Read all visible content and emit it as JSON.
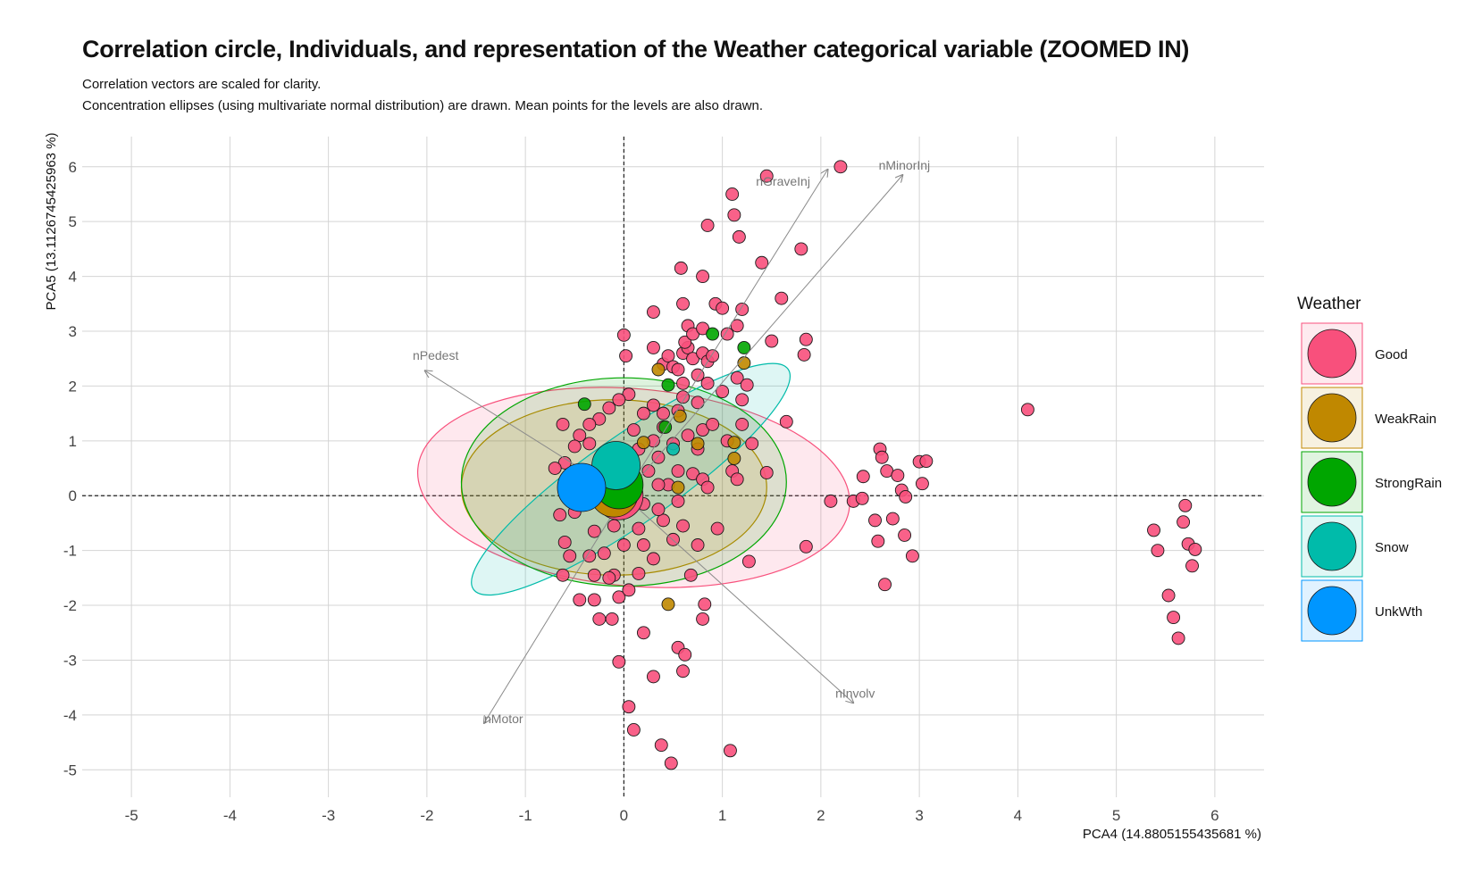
{
  "chart_data": {
    "type": "scatter",
    "title": "Correlation circle, Individuals, and representation of the Weather categorical variable (ZOOMED IN)",
    "subtitle_lines": [
      "Correlation vectors are scaled for clarity.",
      "Concentration ellipses (using multivariate normal distribution) are drawn. Mean points for the levels are also drawn."
    ],
    "xlabel": "PCA4 (14.8805155435681 %)",
    "ylabel": "PCA5 (13.1126745425963 %)",
    "xlim": [
      -5.5,
      6.5
    ],
    "ylim": [
      -5.5,
      6.55
    ],
    "xticks": [
      -5,
      -4,
      -3,
      -2,
      -1,
      0,
      1,
      2,
      3,
      4,
      5,
      6
    ],
    "yticks": [
      -5,
      -4,
      -3,
      -2,
      -1,
      0,
      1,
      2,
      3,
      4,
      5,
      6
    ],
    "grid": true,
    "reference_lines": {
      "x": 0,
      "y": 0,
      "style": "dashed"
    },
    "legend": {
      "title": "Weather",
      "position": "right",
      "items": [
        {
          "label": "Good",
          "color": "#F8507C"
        },
        {
          "label": "WeakRain",
          "color": "#C08800"
        },
        {
          "label": "StrongRain",
          "color": "#00A600"
        },
        {
          "label": "Snow",
          "color": "#00BBAA"
        },
        {
          "label": "UnkWth",
          "color": "#0096FF"
        }
      ]
    },
    "vectors": [
      {
        "label": "nGraveInj",
        "x": 2.07,
        "y": 5.95
      },
      {
        "label": "nMinorInj",
        "x": 2.83,
        "y": 5.85
      },
      {
        "label": "nPedest",
        "x": -2.02,
        "y": 2.28
      },
      {
        "label": "nInvolv",
        "x": 2.33,
        "y": -3.78
      },
      {
        "label": "nMotor",
        "x": -1.42,
        "y": -4.15
      }
    ],
    "ellipses": [
      {
        "level": "Good",
        "cx": 0.1,
        "cy": 0.15,
        "rx": 2.2,
        "ry": 1.8,
        "angle": -5
      },
      {
        "level": "WeakRain",
        "cx": -0.1,
        "cy": 0.15,
        "rx": 1.55,
        "ry": 1.6,
        "angle": 0
      },
      {
        "level": "StrongRain",
        "cx": 0.0,
        "cy": 0.25,
        "rx": 1.65,
        "ry": 1.9,
        "angle": 0
      },
      {
        "level": "Snow",
        "cx": 0.07,
        "cy": 0.3,
        "rx": 1.95,
        "ry": 0.8,
        "angle": 35
      }
    ],
    "means": [
      {
        "level": "Good",
        "x": -0.05,
        "y": 0.0
      },
      {
        "level": "WeakRain",
        "x": -0.1,
        "y": 0.05
      },
      {
        "level": "StrongRain",
        "x": -0.05,
        "y": 0.2
      },
      {
        "level": "Snow",
        "x": -0.08,
        "y": 0.55
      },
      {
        "level": "UnkWth",
        "x": -0.43,
        "y": 0.15
      }
    ],
    "points": [
      {
        "level": "Good",
        "xy": [
          [
            0.0,
            2.93
          ],
          [
            0.02,
            2.55
          ],
          [
            0.3,
            2.7
          ],
          [
            0.3,
            3.35
          ],
          [
            0.4,
            2.4
          ],
          [
            0.45,
            2.55
          ],
          [
            0.5,
            2.35
          ],
          [
            0.55,
            2.3
          ],
          [
            0.6,
            2.6
          ],
          [
            0.6,
            2.05
          ],
          [
            0.65,
            2.7
          ],
          [
            0.7,
            2.5
          ],
          [
            0.75,
            2.2
          ],
          [
            0.8,
            2.6
          ],
          [
            0.6,
            3.5
          ],
          [
            0.62,
            2.8
          ],
          [
            0.65,
            3.1
          ],
          [
            0.7,
            2.95
          ],
          [
            0.8,
            3.05
          ],
          [
            0.85,
            2.45
          ],
          [
            0.9,
            2.55
          ],
          [
            0.93,
            3.5
          ],
          [
            1.0,
            3.42
          ],
          [
            1.05,
            2.95
          ],
          [
            1.15,
            3.1
          ],
          [
            1.2,
            3.4
          ],
          [
            0.85,
            4.93
          ],
          [
            1.1,
            5.5
          ],
          [
            1.12,
            5.12
          ],
          [
            1.17,
            4.72
          ],
          [
            1.45,
            5.83
          ],
          [
            2.2,
            6.0
          ],
          [
            1.8,
            4.5
          ],
          [
            1.4,
            4.25
          ],
          [
            0.8,
            4.0
          ],
          [
            0.58,
            4.15
          ],
          [
            1.6,
            3.6
          ],
          [
            1.85,
            2.85
          ],
          [
            1.5,
            2.82
          ],
          [
            1.83,
            2.57
          ],
          [
            1.15,
            2.15
          ],
          [
            1.25,
            2.02
          ],
          [
            1.2,
            1.75
          ],
          [
            1.65,
            1.35
          ],
          [
            1.0,
            1.9
          ],
          [
            0.85,
            2.05
          ],
          [
            0.75,
            1.7
          ],
          [
            0.6,
            1.8
          ],
          [
            0.55,
            1.55
          ],
          [
            0.4,
            1.5
          ],
          [
            0.3,
            1.65
          ],
          [
            0.2,
            1.5
          ],
          [
            0.1,
            1.2
          ],
          [
            0.05,
            1.85
          ],
          [
            -0.05,
            1.75
          ],
          [
            -0.15,
            1.6
          ],
          [
            -0.25,
            1.4
          ],
          [
            -0.35,
            1.3
          ],
          [
            -0.45,
            1.1
          ],
          [
            -0.5,
            0.9
          ],
          [
            -0.6,
            0.6
          ],
          [
            -0.7,
            0.5
          ],
          [
            -0.62,
            1.3
          ],
          [
            -0.35,
            0.95
          ],
          [
            -0.2,
            0.65
          ],
          [
            -0.3,
            0.4
          ],
          [
            -0.4,
            -0.1
          ],
          [
            -0.5,
            -0.3
          ],
          [
            -0.3,
            -0.65
          ],
          [
            -0.1,
            -0.55
          ],
          [
            0.0,
            -0.9
          ],
          [
            0.2,
            -0.9
          ],
          [
            0.3,
            -1.15
          ],
          [
            0.15,
            -1.42
          ],
          [
            -0.1,
            -1.45
          ],
          [
            -0.3,
            -1.45
          ],
          [
            -0.35,
            -1.1
          ],
          [
            -0.05,
            -1.85
          ],
          [
            -0.25,
            -2.25
          ],
          [
            -0.12,
            -2.25
          ],
          [
            0.05,
            -1.72
          ],
          [
            0.2,
            -2.5
          ],
          [
            0.3,
            -3.3
          ],
          [
            0.55,
            -2.77
          ],
          [
            0.62,
            -2.9
          ],
          [
            0.6,
            -3.2
          ],
          [
            0.8,
            -2.25
          ],
          [
            0.82,
            -1.98
          ],
          [
            -0.05,
            -3.03
          ],
          [
            0.05,
            -3.85
          ],
          [
            0.1,
            -4.27
          ],
          [
            0.38,
            -4.55
          ],
          [
            0.48,
            -4.88
          ],
          [
            1.08,
            -4.65
          ],
          [
            0.68,
            -1.45
          ],
          [
            1.27,
            -1.2
          ],
          [
            0.5,
            -0.8
          ],
          [
            0.75,
            -0.9
          ],
          [
            0.95,
            -0.6
          ],
          [
            0.6,
            -0.55
          ],
          [
            0.4,
            -0.45
          ],
          [
            0.35,
            -0.25
          ],
          [
            0.55,
            -0.1
          ],
          [
            0.45,
            0.2
          ],
          [
            0.7,
            0.4
          ],
          [
            0.8,
            0.3
          ],
          [
            0.85,
            0.15
          ],
          [
            1.1,
            0.45
          ],
          [
            1.15,
            0.3
          ],
          [
            1.45,
            0.42
          ],
          [
            1.3,
            0.95
          ],
          [
            1.05,
            1.0
          ],
          [
            0.5,
            0.95
          ],
          [
            0.35,
            0.7
          ],
          [
            0.25,
            0.45
          ],
          [
            0.1,
            0.3
          ],
          [
            0.15,
            0.85
          ],
          [
            0.3,
            1.0
          ],
          [
            0.4,
            1.25
          ],
          [
            0.65,
            1.1
          ],
          [
            0.8,
            1.2
          ],
          [
            1.85,
            -0.93
          ],
          [
            2.1,
            -0.1
          ],
          [
            2.33,
            -0.1
          ],
          [
            2.42,
            -0.05
          ],
          [
            2.43,
            0.35
          ],
          [
            2.6,
            0.85
          ],
          [
            2.62,
            0.7
          ],
          [
            2.67,
            0.45
          ],
          [
            2.78,
            0.37
          ],
          [
            2.82,
            0.1
          ],
          [
            2.86,
            -0.02
          ],
          [
            2.55,
            -0.45
          ],
          [
            2.73,
            -0.42
          ],
          [
            2.85,
            -0.72
          ],
          [
            2.58,
            -0.83
          ],
          [
            2.93,
            -1.1
          ],
          [
            2.65,
            -1.62
          ],
          [
            3.0,
            0.62
          ],
          [
            3.07,
            0.63
          ],
          [
            3.03,
            0.22
          ],
          [
            4.1,
            1.57
          ],
          [
            5.38,
            -0.63
          ],
          [
            5.42,
            -1.0
          ],
          [
            5.68,
            -0.48
          ],
          [
            5.7,
            -0.18
          ],
          [
            5.73,
            -0.88
          ],
          [
            5.8,
            -0.98
          ],
          [
            5.77,
            -1.28
          ],
          [
            5.53,
            -1.82
          ],
          [
            5.58,
            -2.22
          ],
          [
            5.63,
            -2.6
          ],
          [
            -0.62,
            -1.45
          ],
          [
            -0.55,
            -1.1
          ],
          [
            -0.2,
            -1.05
          ],
          [
            -0.6,
            -0.85
          ],
          [
            -0.65,
            -0.35
          ],
          [
            -0.45,
            -1.9
          ],
          [
            -0.3,
            -1.9
          ],
          [
            -0.15,
            -1.5
          ],
          [
            0.15,
            -0.6
          ],
          [
            -0.05,
            -0.25
          ],
          [
            0.2,
            -0.15
          ],
          [
            0.35,
            0.2
          ],
          [
            0.55,
            0.45
          ],
          [
            0.75,
            0.85
          ],
          [
            0.9,
            1.3
          ],
          [
            1.2,
            1.3
          ]
        ]
      },
      {
        "level": "WeakRain",
        "xy": [
          [
            0.35,
            2.3
          ],
          [
            0.57,
            1.45
          ],
          [
            0.75,
            0.95
          ],
          [
            1.12,
            0.97
          ],
          [
            1.12,
            0.68
          ],
          [
            0.2,
            0.97
          ],
          [
            1.22,
            2.42
          ],
          [
            0.45,
            -1.98
          ],
          [
            0.55,
            0.15
          ]
        ]
      },
      {
        "level": "StrongRain",
        "xy": [
          [
            0.9,
            2.95
          ],
          [
            1.22,
            2.7
          ],
          [
            -0.4,
            1.67
          ],
          [
            0.42,
            1.25
          ],
          [
            0.45,
            2.02
          ]
        ]
      },
      {
        "level": "Snow",
        "xy": [
          [
            0.5,
            0.85
          ]
        ]
      }
    ]
  }
}
